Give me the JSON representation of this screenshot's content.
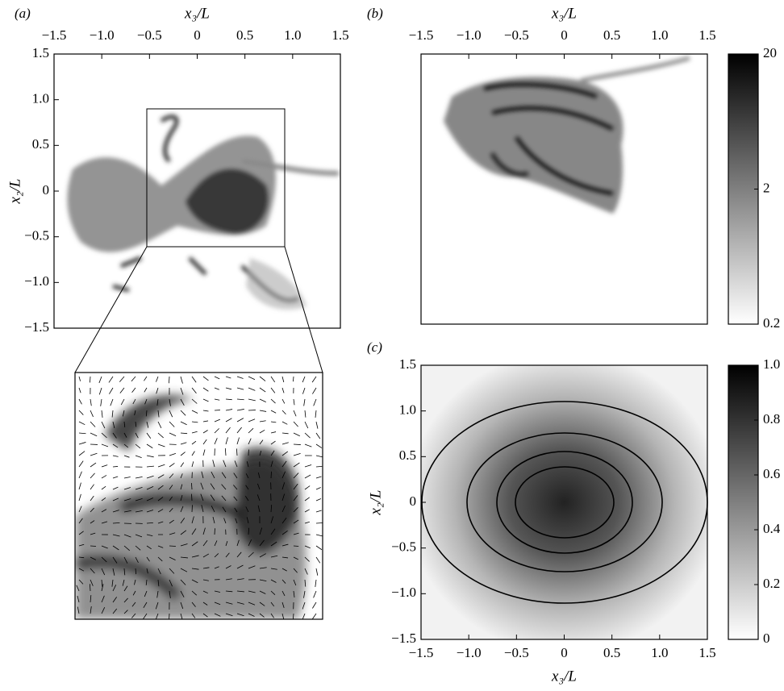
{
  "chart_data": [
    {
      "type": "image",
      "panel_label": "(a)",
      "xlabel": "x₃/L",
      "ylabel": "x₂/L",
      "xlim": [
        -1.5,
        1.5
      ],
      "ylim": [
        -1.5,
        1.5
      ],
      "xticks": [
        {
          "value": -1.5,
          "label": "−1.5"
        },
        {
          "value": -1,
          "label": "−1.0"
        },
        {
          "value": -0.5,
          "label": "−0.5"
        },
        0,
        0.5,
        {
          "value": 1,
          "label": "1.0"
        },
        1.5
      ],
      "yticks": [
        {
          "value": -1.5,
          "label": "−1.5"
        },
        {
          "value": -1,
          "label": "−1.0"
        },
        {
          "value": -0.5,
          "label": "−0.5"
        },
        0,
        0.5,
        {
          "value": 1,
          "label": "1.0"
        },
        1.5
      ]
    },
    {
      "type": "image",
      "panel_label": "(b)",
      "xlabel": "x₃/L",
      "xlim": [
        -1.5,
        1.5
      ],
      "xticks": [
        {
          "value": -1.5,
          "label": "−1.5"
        },
        {
          "value": -1,
          "label": "−1.0"
        },
        {
          "value": -0.5,
          "label": "−0.5"
        },
        0,
        0.5,
        {
          "value": 1,
          "label": "1.0"
        },
        1.5
      ],
      "colorbar": {
        "log_scale": true,
        "lim": [
          0.2,
          20
        ],
        "ticks": [
          0.2,
          2,
          20
        ]
      }
    },
    {
      "type": "heatmap",
      "panel_label": "(c)",
      "xlabel": "x₃/L",
      "ylabel": "x₂/L",
      "xlim": [
        -1.5,
        1.5
      ],
      "ylim": [
        -1.5,
        1.5
      ],
      "xticks": [
        {
          "value": -1.5,
          "label": "−1.5"
        },
        {
          "value": -1,
          "label": "−1.0"
        },
        {
          "value": -0.5,
          "label": "−0.5"
        },
        0,
        0.5,
        {
          "value": 1,
          "label": "1.0"
        },
        1.5
      ],
      "yticks": [
        {
          "value": -1.5,
          "label": "−1.5"
        },
        {
          "value": -1,
          "label": "−1.0"
        },
        {
          "value": -0.5,
          "label": "−0.5"
        },
        0,
        0.5,
        {
          "value": 1,
          "label": "1.0"
        },
        1.5
      ],
      "colorbar": {
        "log_scale": false,
        "lim": [
          0,
          1
        ],
        "ticks": [
          0,
          0.2,
          0.4,
          0.6,
          0.8,
          {
            "value": 1,
            "label": "1.0"
          }
        ]
      }
    }
  ]
}
